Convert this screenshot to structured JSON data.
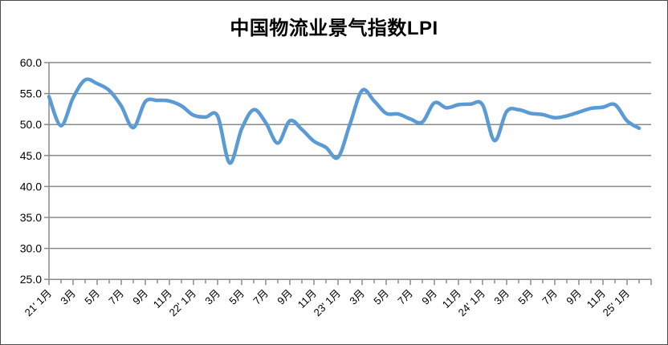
{
  "chart_data": {
    "type": "line",
    "title": "中国物流业景气指数LPI",
    "xlabel": "",
    "ylabel": "",
    "ylim": [
      25.0,
      60.0
    ],
    "ytick_step": 5.0,
    "grid": true,
    "legend_position": "none",
    "line_color": "#5B9BD5",
    "gridline_color": "#8a8a8a",
    "smoothed_line": true,
    "x": [
      "2021-01",
      "2021-02",
      "2021-03",
      "2021-04",
      "2021-05",
      "2021-06",
      "2021-07",
      "2021-08",
      "2021-09",
      "2021-10",
      "2021-11",
      "2021-12",
      "2022-01",
      "2022-02",
      "2022-03",
      "2022-04",
      "2022-05",
      "2022-06",
      "2022-07",
      "2022-08",
      "2022-09",
      "2022-10",
      "2022-11",
      "2022-12",
      "2023-01",
      "2023-02",
      "2023-03",
      "2023-04",
      "2023-05",
      "2023-06",
      "2023-07",
      "2023-08",
      "2023-09",
      "2023-10",
      "2023-11",
      "2023-12",
      "2024-01",
      "2024-02",
      "2024-03",
      "2024-04",
      "2024-05",
      "2024-06",
      "2024-07",
      "2024-08",
      "2024-09",
      "2024-10",
      "2024-11",
      "2024-12",
      "2025-01",
      "2025-02"
    ],
    "series": [
      {
        "name": "LPI",
        "values": [
          54.5,
          49.8,
          54.3,
          57.2,
          56.6,
          55.5,
          53.0,
          49.5,
          53.7,
          53.9,
          53.8,
          53.0,
          51.5,
          51.2,
          51.4,
          43.8,
          49.3,
          52.4,
          50.3,
          47.0,
          50.6,
          49.2,
          47.3,
          46.3,
          44.7,
          50.1,
          55.5,
          53.8,
          51.8,
          51.7,
          50.9,
          50.4,
          53.5,
          52.7,
          53.2,
          53.3,
          53.2,
          47.4,
          52.1,
          52.4,
          51.8,
          51.6,
          51.1,
          51.4,
          52.0,
          52.6,
          52.8,
          53.2,
          50.6,
          49.4
        ]
      }
    ],
    "y_tick_labels": [
      "60.0",
      "55.0",
      "50.0",
      "45.0",
      "40.0",
      "35.0",
      "30.0",
      "25.0"
    ],
    "x_tick_labels": [
      "21' 1月",
      "3月",
      "5月",
      "7月",
      "9月",
      "11月",
      "22' 1月",
      "3月",
      "5月",
      "7月",
      "9月",
      "11月",
      "23' 1月",
      "3月",
      "5月",
      "7月",
      "9月",
      "11月",
      "24' 1月",
      "3月",
      "5月",
      "7月",
      "9月",
      "11月",
      "25' 1月"
    ],
    "x_label_every_n_months": 2
  }
}
